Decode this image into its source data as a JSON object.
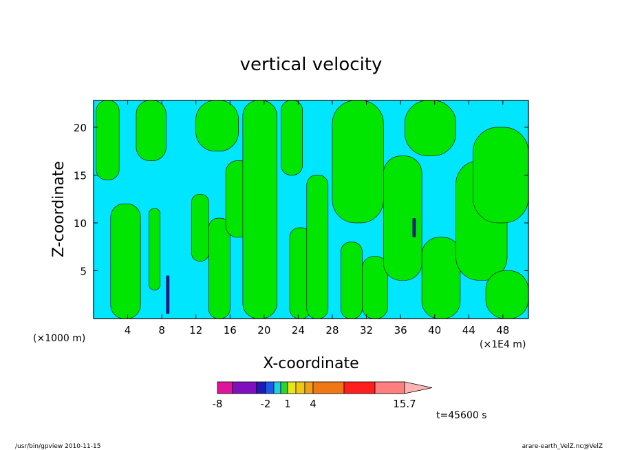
{
  "chart_data": {
    "type": "heatmap",
    "title": "vertical velocity",
    "xlabel": "X-coordinate",
    "ylabel": "Z-coordinate",
    "x_unit_left": "(×1000 m)",
    "x_unit_right": "(×1E4 m)",
    "xlim": [
      0,
      51
    ],
    "ylim": [
      0,
      22.8
    ],
    "x_ticks": [
      4,
      8,
      12,
      16,
      20,
      24,
      28,
      32,
      36,
      40,
      44,
      48
    ],
    "y_ticks": [
      5,
      10,
      15,
      20
    ],
    "colorbar": {
      "colors": [
        "#e0149a",
        "#7f0fbf",
        "#1c1cb4",
        "#1e5ae8",
        "#19d2e6",
        "#2fd22f",
        "#e6e619",
        "#f0c814",
        "#f0a014",
        "#f07814",
        "#ff1e1e",
        "#ff7f7f",
        "#ffb4b4"
      ],
      "labels": [
        "-8",
        "-2",
        "1",
        "4",
        "15.7"
      ],
      "label_positions_index": [
        1,
        3.5,
        5,
        7,
        12
      ]
    },
    "field": {
      "background_color": "#00e6ff",
      "positive_color": "#00e600",
      "strong_color": "#1e1e7f",
      "green_regions": [
        {
          "x": [
            0.3,
            3.0
          ],
          "y": [
            14.5,
            22.8
          ]
        },
        {
          "x": [
            2.0,
            5.5
          ],
          "y": [
            0.0,
            12.0
          ]
        },
        {
          "x": [
            5.0,
            8.5
          ],
          "y": [
            16.5,
            22.8
          ]
        },
        {
          "x": [
            6.5,
            7.8
          ],
          "y": [
            3.0,
            11.5
          ]
        },
        {
          "x": [
            11.5,
            13.5
          ],
          "y": [
            6.0,
            13.0
          ]
        },
        {
          "x": [
            12.0,
            17.0
          ],
          "y": [
            17.5,
            22.8
          ]
        },
        {
          "x": [
            13.5,
            16.0
          ],
          "y": [
            0.0,
            10.5
          ]
        },
        {
          "x": [
            15.5,
            18.5
          ],
          "y": [
            8.5,
            16.5
          ]
        },
        {
          "x": [
            17.5,
            21.5
          ],
          "y": [
            0.0,
            22.8
          ]
        },
        {
          "x": [
            22.0,
            24.5
          ],
          "y": [
            15.0,
            22.8
          ]
        },
        {
          "x": [
            23.0,
            25.5
          ],
          "y": [
            0.0,
            9.5
          ]
        },
        {
          "x": [
            25.0,
            27.5
          ],
          "y": [
            0.0,
            15.0
          ]
        },
        {
          "x": [
            28.0,
            34.0
          ],
          "y": [
            10.0,
            22.8
          ]
        },
        {
          "x": [
            29.0,
            31.5
          ],
          "y": [
            0.0,
            8.0
          ]
        },
        {
          "x": [
            31.5,
            34.5
          ],
          "y": [
            0.0,
            6.5
          ]
        },
        {
          "x": [
            34.0,
            38.5
          ],
          "y": [
            4.0,
            17.0
          ]
        },
        {
          "x": [
            36.5,
            42.5
          ],
          "y": [
            17.0,
            22.8
          ]
        },
        {
          "x": [
            38.5,
            43.0
          ],
          "y": [
            0.0,
            8.5
          ]
        },
        {
          "x": [
            42.5,
            48.5
          ],
          "y": [
            4.0,
            16.5
          ]
        },
        {
          "x": [
            44.5,
            51.0
          ],
          "y": [
            10.0,
            20.0
          ]
        },
        {
          "x": [
            46.0,
            51.0
          ],
          "y": [
            0.0,
            5.0
          ]
        }
      ],
      "strong_regions": [
        {
          "x": [
            8.5,
            8.9
          ],
          "y": [
            0.5,
            4.5
          ]
        },
        {
          "x": [
            37.4,
            37.8
          ],
          "y": [
            8.5,
            10.5
          ]
        }
      ]
    }
  },
  "annotation_time": "t=45600 s",
  "footer_left": "/usr/bin/gpview   2010-11-15",
  "footer_right": "arare-earth_VelZ.nc@VelZ"
}
